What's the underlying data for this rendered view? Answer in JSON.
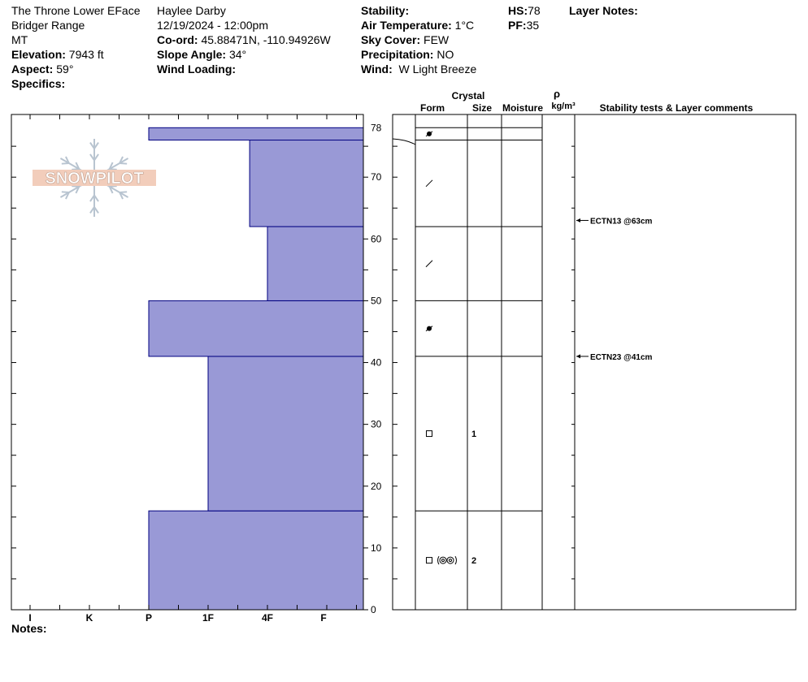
{
  "header": {
    "col1": {
      "location": "The Throne Lower EFace",
      "range": "Bridger Range",
      "state": "MT",
      "elevation_label": "Elevation:",
      "elevation_value": "7943 ft",
      "aspect_label": "Aspect:",
      "aspect_value": "59°",
      "specifics_label": "Specifics:"
    },
    "col2": {
      "observer": "Haylee Darby",
      "datetime": "12/19/2024 - 12:00pm",
      "coord_label": "Co-ord:",
      "coord_value": "45.88471N, -110.94926W",
      "slope_label": "Slope Angle:",
      "slope_value": "34°",
      "wind_loading_label": "Wind Loading:"
    },
    "col3": {
      "stability_label": "Stability:",
      "air_temp_label": "Air Temperature:",
      "air_temp_value": "1°C",
      "sky_label": "Sky Cover:",
      "sky_value": "FEW",
      "precip_label": "Precipitation:",
      "precip_value": "NO",
      "wind_label": "Wind:",
      "wind_value": "W Light Breeze"
    },
    "col4": {
      "hs_label": "HS:",
      "hs_value": "78",
      "pf_label": "PF:",
      "pf_value": "35"
    },
    "col5": {
      "layer_notes_label": "Layer Notes:"
    }
  },
  "notes_label": "Notes:",
  "logo_text": "SNOWPILOT",
  "colors": {
    "hardness_fill": "#9999d6",
    "hardness_stroke": "#000080"
  },
  "chart_data": {
    "type": "bar",
    "hardness_ticks": [
      "I",
      "K",
      "P",
      "1F",
      "4F",
      "F"
    ],
    "depth_ticks": [
      0,
      10,
      20,
      30,
      40,
      50,
      60,
      70,
      78
    ],
    "ylim": [
      0,
      78
    ],
    "layers": [
      {
        "bottom": 0,
        "top": 16,
        "hardness": 2.0
      },
      {
        "bottom": 16,
        "top": 41,
        "hardness": 3.0
      },
      {
        "bottom": 41,
        "top": 50,
        "hardness": 2.0
      },
      {
        "bottom": 50,
        "top": 62,
        "hardness": 4.0
      },
      {
        "bottom": 62,
        "top": 76,
        "hardness": 3.7
      },
      {
        "bottom": 76,
        "top": 78,
        "hardness": 2.0
      }
    ],
    "layer_boundaries": [
      16,
      41,
      50,
      62,
      76,
      78
    ],
    "columns": {
      "crystal_label": "Crystal",
      "form_label": "Form",
      "size_label": "Size",
      "moisture_label": "Moisture",
      "rho_label": "ρ",
      "density_unit": "kg/m³",
      "comments_label": "Stability tests & Layer comments"
    },
    "crystals": [
      {
        "depth": 77,
        "form": "dot-small",
        "size": ""
      },
      {
        "depth": 69,
        "form": "slash",
        "size": ""
      },
      {
        "depth": 56,
        "form": "slash",
        "size": ""
      },
      {
        "depth": 45.5,
        "form": "dot-small",
        "size": ""
      },
      {
        "depth": 28.5,
        "form": "square",
        "size": "1"
      },
      {
        "depth": 8,
        "form": "square-ring",
        "size": "2"
      }
    ],
    "stability_tests": [
      {
        "depth": 63,
        "label": "ECTN13 @63cm"
      },
      {
        "depth": 41,
        "label": "ECTN23 @41cm"
      }
    ]
  }
}
